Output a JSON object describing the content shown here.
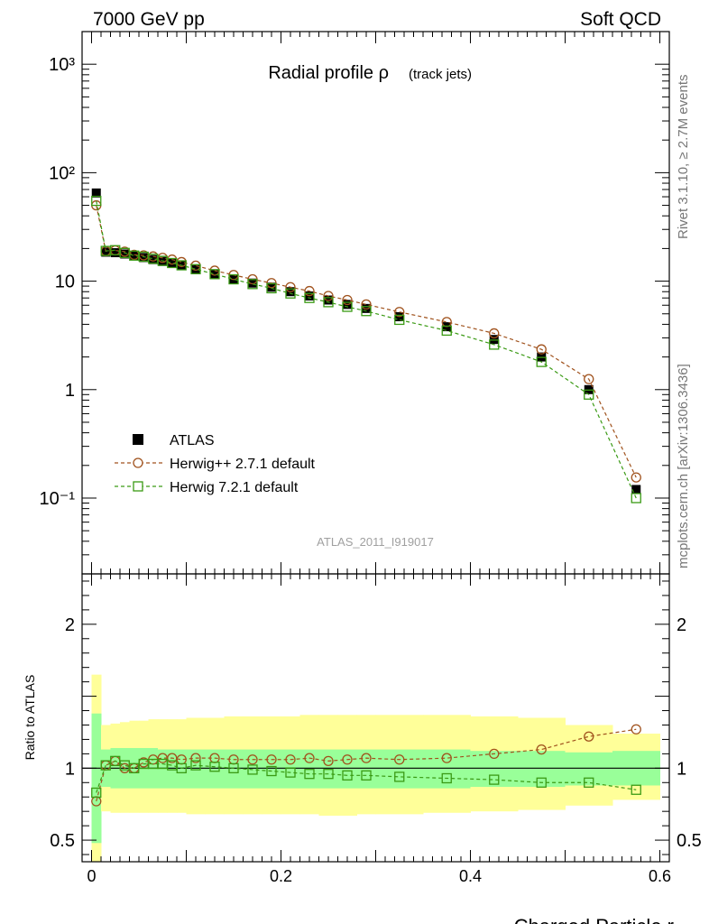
{
  "header": {
    "left": "7000 GeV pp",
    "right": "Soft QCD"
  },
  "side_labels": {
    "rivet": "Rivet 3.1.10, ≥ 2.7M events",
    "mcplots": "mcplots.cern.ch [arXiv:1306.3436]"
  },
  "colors": {
    "atlas": "#000000",
    "herwigpp": "#a0521d",
    "herwig7": "#3a9a14",
    "band_inner": "#99ff99",
    "band_outer": "#ffff99"
  },
  "chart_data": [
    {
      "type": "scatter",
      "panel": "main",
      "title": "Radial profile ρ",
      "title_suffix": "(track jets)",
      "watermark": "ATLAS_2011_I919017",
      "yscale": "log",
      "ylim": [
        0.02,
        2000
      ],
      "xlim": [
        -0.01,
        0.61
      ],
      "ytick_labels": [
        "10⁻¹",
        "1",
        "10",
        "10²",
        "10³"
      ],
      "legend_position": "lower-left",
      "x": [
        0.005,
        0.015,
        0.025,
        0.035,
        0.045,
        0.055,
        0.065,
        0.075,
        0.085,
        0.095,
        0.11,
        0.13,
        0.15,
        0.17,
        0.19,
        0.21,
        0.23,
        0.25,
        0.27,
        0.29,
        0.325,
        0.375,
        0.425,
        0.475,
        0.525,
        0.575
      ],
      "series": [
        {
          "name": "ATLAS",
          "style": "marker",
          "values": [
            65,
            18.5,
            18.3,
            17.8,
            17.2,
            16.5,
            15.8,
            15.2,
            14.6,
            14.0,
            12.8,
            11.5,
            10.5,
            9.6,
            8.8,
            8.0,
            7.3,
            6.7,
            6.1,
            5.6,
            4.7,
            3.8,
            2.9,
            2.0,
            1.0,
            0.12
          ]
        },
        {
          "name": "Herwig++ 2.7.1 default",
          "style": "circle-dashed",
          "values": [
            50,
            18.9,
            19.2,
            18.7,
            17.5,
            17.3,
            16.9,
            16.4,
            15.8,
            15.0,
            13.9,
            12.5,
            11.4,
            10.4,
            9.6,
            8.8,
            8.1,
            7.3,
            6.7,
            6.1,
            5.2,
            4.2,
            3.3,
            2.35,
            1.25,
            0.155
          ]
        },
        {
          "name": "Herwig 7.2.1 default",
          "style": "square-dashed",
          "values": [
            55,
            19.0,
            19.3,
            18.2,
            17.2,
            16.8,
            16.1,
            15.4,
            14.7,
            14.0,
            12.9,
            11.6,
            10.4,
            9.4,
            8.6,
            7.7,
            7.0,
            6.4,
            5.8,
            5.3,
            4.4,
            3.5,
            2.6,
            1.8,
            0.9,
            0.1
          ]
        }
      ]
    },
    {
      "type": "scatter",
      "panel": "ratio",
      "ylabel": "Ratio to ATLAS",
      "xlabel": "Charged Particle r",
      "ylim": [
        0.35,
        2.35
      ],
      "yticks": [
        0.5,
        1,
        2
      ],
      "ytick_labels": [
        "0.5",
        "1",
        "2"
      ],
      "xlim": [
        -0.01,
        0.61
      ],
      "xticks": [
        0,
        0.2,
        0.4,
        0.6
      ],
      "xtick_labels": [
        "0",
        "0.2",
        "0.4",
        "0.6"
      ],
      "x": [
        0.005,
        0.015,
        0.025,
        0.035,
        0.045,
        0.055,
        0.065,
        0.075,
        0.085,
        0.095,
        0.11,
        0.13,
        0.15,
        0.17,
        0.19,
        0.21,
        0.23,
        0.25,
        0.27,
        0.29,
        0.325,
        0.375,
        0.425,
        0.475,
        0.525,
        0.575
      ],
      "bins": [
        [
          0,
          0.01
        ],
        [
          0.01,
          0.02
        ],
        [
          0.02,
          0.03
        ],
        [
          0.03,
          0.04
        ],
        [
          0.04,
          0.05
        ],
        [
          0.05,
          0.06
        ],
        [
          0.06,
          0.07
        ],
        [
          0.07,
          0.08
        ],
        [
          0.08,
          0.09
        ],
        [
          0.09,
          0.1
        ],
        [
          0.1,
          0.12
        ],
        [
          0.12,
          0.14
        ],
        [
          0.14,
          0.16
        ],
        [
          0.16,
          0.18
        ],
        [
          0.18,
          0.2
        ],
        [
          0.2,
          0.22
        ],
        [
          0.22,
          0.24
        ],
        [
          0.24,
          0.26
        ],
        [
          0.26,
          0.28
        ],
        [
          0.28,
          0.3
        ],
        [
          0.3,
          0.35
        ],
        [
          0.35,
          0.4
        ],
        [
          0.4,
          0.45
        ],
        [
          0.45,
          0.5
        ],
        [
          0.5,
          0.55
        ],
        [
          0.55,
          0.6
        ]
      ],
      "band_inner": [
        [
          0.48,
          1.38
        ],
        [
          0.87,
          1.13
        ],
        [
          0.86,
          1.14
        ],
        [
          0.86,
          1.14
        ],
        [
          0.86,
          1.14
        ],
        [
          0.86,
          1.14
        ],
        [
          0.86,
          1.14
        ],
        [
          0.86,
          1.13
        ],
        [
          0.86,
          1.13
        ],
        [
          0.86,
          1.13
        ],
        [
          0.86,
          1.13
        ],
        [
          0.86,
          1.13
        ],
        [
          0.86,
          1.13
        ],
        [
          0.86,
          1.13
        ],
        [
          0.86,
          1.13
        ],
        [
          0.86,
          1.13
        ],
        [
          0.86,
          1.13
        ],
        [
          0.86,
          1.13
        ],
        [
          0.86,
          1.13
        ],
        [
          0.86,
          1.13
        ],
        [
          0.86,
          1.13
        ],
        [
          0.86,
          1.13
        ],
        [
          0.87,
          1.12
        ],
        [
          0.87,
          1.12
        ],
        [
          0.88,
          1.11
        ],
        [
          0.88,
          1.12
        ]
      ],
      "band_outer": [
        [
          0.35,
          1.65
        ],
        [
          0.7,
          1.3
        ],
        [
          0.69,
          1.31
        ],
        [
          0.69,
          1.32
        ],
        [
          0.69,
          1.33
        ],
        [
          0.69,
          1.33
        ],
        [
          0.69,
          1.34
        ],
        [
          0.69,
          1.34
        ],
        [
          0.69,
          1.34
        ],
        [
          0.69,
          1.34
        ],
        [
          0.68,
          1.35
        ],
        [
          0.68,
          1.35
        ],
        [
          0.68,
          1.36
        ],
        [
          0.68,
          1.36
        ],
        [
          0.68,
          1.36
        ],
        [
          0.68,
          1.36
        ],
        [
          0.68,
          1.37
        ],
        [
          0.67,
          1.37
        ],
        [
          0.67,
          1.37
        ],
        [
          0.68,
          1.37
        ],
        [
          0.68,
          1.37
        ],
        [
          0.69,
          1.37
        ],
        [
          0.7,
          1.36
        ],
        [
          0.71,
          1.35
        ],
        [
          0.74,
          1.3
        ],
        [
          0.78,
          1.24
        ]
      ],
      "series": [
        {
          "name": "Herwig++ 2.7.1 default",
          "style": "circle-dashed",
          "values": [
            0.77,
            1.02,
            1.05,
            1.0,
            1.0,
            1.04,
            1.06,
            1.07,
            1.07,
            1.06,
            1.07,
            1.07,
            1.06,
            1.06,
            1.06,
            1.06,
            1.07,
            1.05,
            1.06,
            1.07,
            1.06,
            1.07,
            1.1,
            1.13,
            1.22,
            1.27
          ]
        },
        {
          "name": "Herwig 7.2.1 default",
          "style": "square-dashed",
          "values": [
            0.83,
            1.02,
            1.05,
            1.02,
            1.0,
            1.03,
            1.03,
            1.03,
            1.02,
            1.0,
            1.02,
            1.01,
            1.0,
            0.99,
            0.98,
            0.97,
            0.96,
            0.96,
            0.95,
            0.95,
            0.94,
            0.93,
            0.92,
            0.9,
            0.9,
            0.85
          ]
        }
      ]
    }
  ]
}
